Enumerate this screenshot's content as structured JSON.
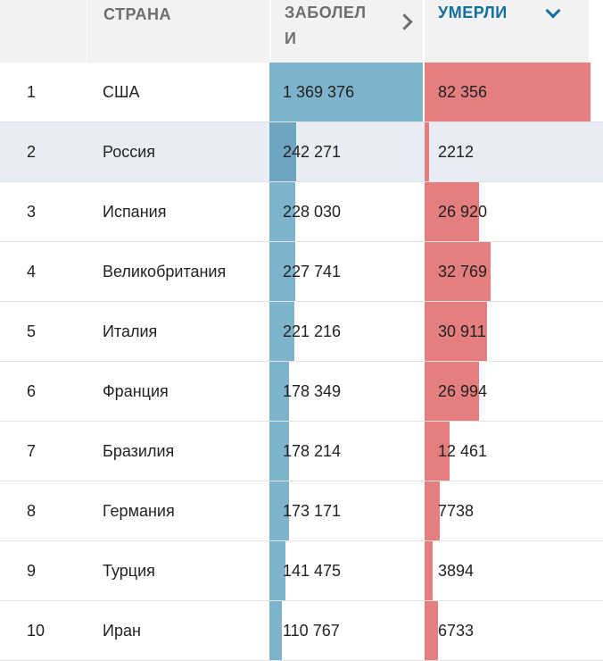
{
  "headers": {
    "country": "СТРАНА",
    "cases_line1": "ЗАБОЛЕЛ",
    "cases_line2": "И",
    "deaths": "УМЕРЛИ"
  },
  "colors": {
    "cases_bar": "#7eb3cc",
    "deaths_bar": "#e57e7e",
    "active_header": "#0f6fa0",
    "highlight_row": "#e8edf3"
  },
  "max": {
    "cases": 1369376,
    "deaths": 82356
  },
  "highlight_rank": "2",
  "rows": [
    {
      "rank": "1",
      "country": "США",
      "cases_label": "1 369 376",
      "cases": 1369376,
      "deaths_label": "82 356",
      "deaths": 82356
    },
    {
      "rank": "2",
      "country": "Россия",
      "cases_label": "242 271",
      "cases": 242271,
      "deaths_label": "2212",
      "deaths": 2212
    },
    {
      "rank": "3",
      "country": "Испания",
      "cases_label": "228 030",
      "cases": 228030,
      "deaths_label": "26 920",
      "deaths": 26920
    },
    {
      "rank": "4",
      "country": "Великобритания",
      "cases_label": "227 741",
      "cases": 227741,
      "deaths_label": "32 769",
      "deaths": 32769
    },
    {
      "rank": "5",
      "country": "Италия",
      "cases_label": "221 216",
      "cases": 221216,
      "deaths_label": "30 911",
      "deaths": 30911
    },
    {
      "rank": "6",
      "country": "Франция",
      "cases_label": "178 349",
      "cases": 178349,
      "deaths_label": "26 994",
      "deaths": 26994
    },
    {
      "rank": "7",
      "country": "Бразилия",
      "cases_label": "178 214",
      "cases": 178214,
      "deaths_label": "12 461",
      "deaths": 12461
    },
    {
      "rank": "8",
      "country": "Германия",
      "cases_label": "173 171",
      "cases": 173171,
      "deaths_label": "7738",
      "deaths": 7738
    },
    {
      "rank": "9",
      "country": "Турция",
      "cases_label": "141 475",
      "cases": 141475,
      "deaths_label": "3894",
      "deaths": 3894
    },
    {
      "rank": "10",
      "country": "Иран",
      "cases_label": "110 767",
      "cases": 110767,
      "deaths_label": "6733",
      "deaths": 6733
    }
  ]
}
